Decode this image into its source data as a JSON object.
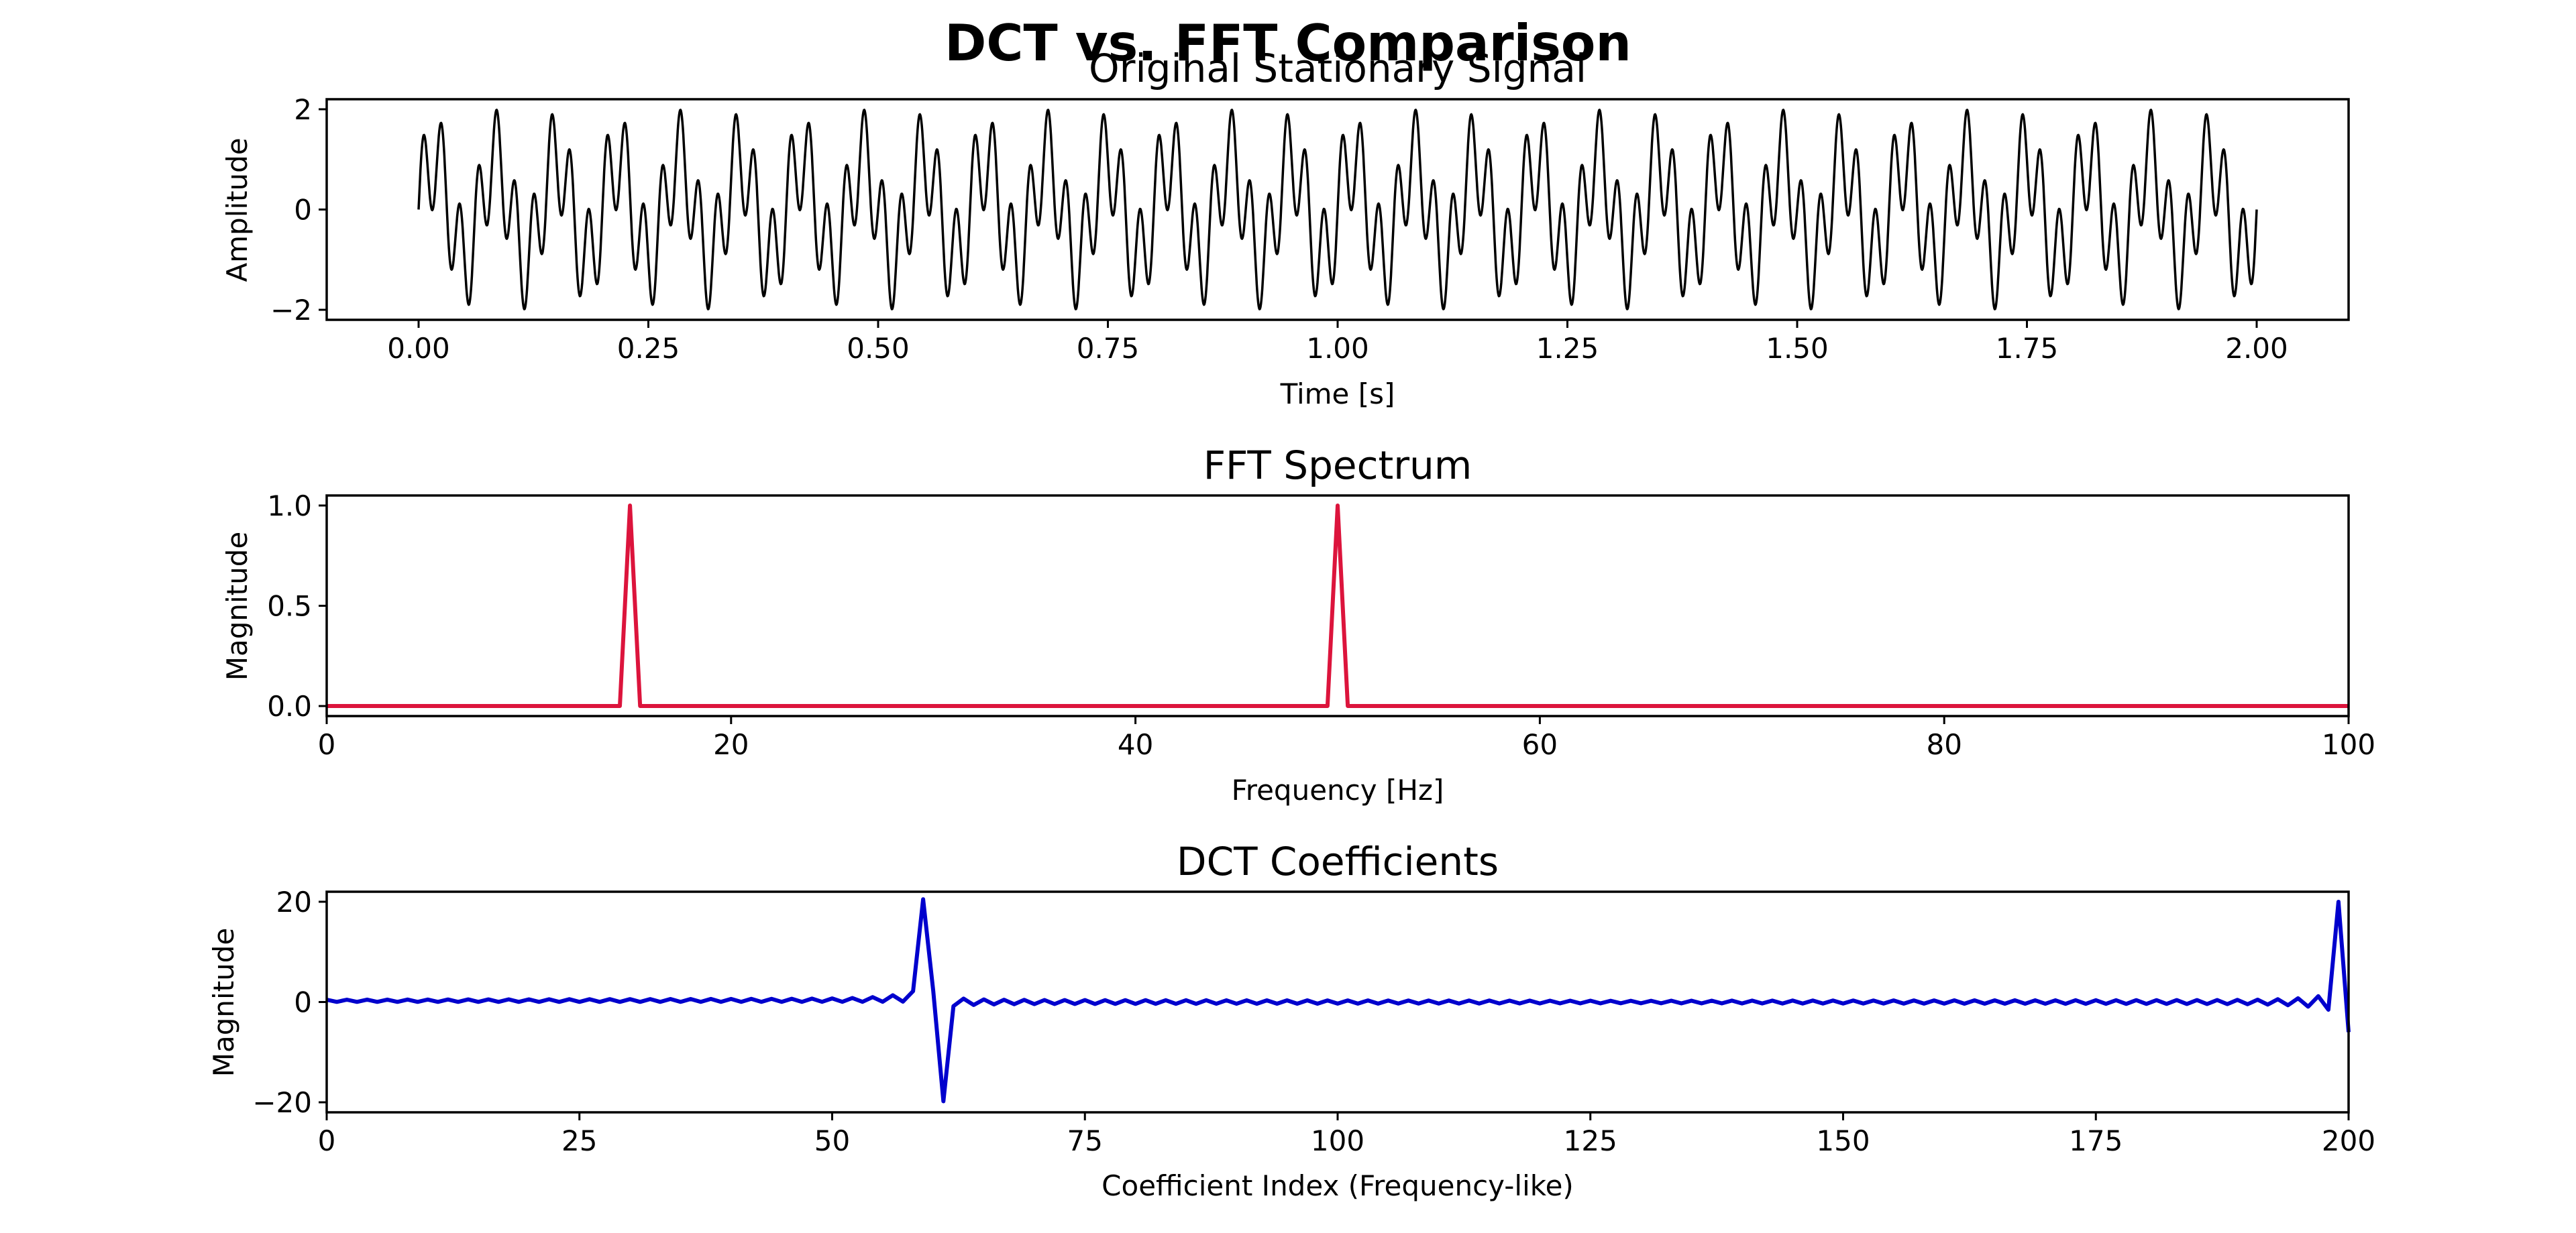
{
  "figure": {
    "suptitle": "DCT vs. FFT Comparison"
  },
  "chart_data": [
    {
      "type": "line",
      "title": "Original Stationary Signal",
      "xlabel": "Time [s]",
      "ylabel": "Amplitude",
      "xlim": [
        -0.1,
        2.1
      ],
      "ylim": [
        -2.2,
        2.2
      ],
      "xticks": [
        "0.00",
        "0.25",
        "0.50",
        "0.75",
        "1.00",
        "1.25",
        "1.50",
        "1.75",
        "2.00"
      ],
      "yticks": [
        "−2",
        "0",
        "2"
      ],
      "line_color": "#000000",
      "series": [
        {
          "signal": "sin(2π·15·t) + sin(2π·50·t)",
          "components": [
            {
              "frequency_hz": 15,
              "amplitude": 1.0
            },
            {
              "frequency_hz": 50,
              "amplitude": 1.0
            }
          ],
          "t_range": [
            0.0,
            2.0
          ]
        }
      ],
      "grid": false
    },
    {
      "type": "line",
      "title": "FFT Spectrum",
      "xlabel": "Frequency [Hz]",
      "ylabel": "Magnitude",
      "xlim": [
        0,
        100
      ],
      "ylim": [
        -0.05,
        1.05
      ],
      "xticks": [
        "0",
        "20",
        "40",
        "60",
        "80",
        "100"
      ],
      "yticks": [
        "0.0",
        "0.5",
        "1.0"
      ],
      "line_color": "#DC143C",
      "series": [
        {
          "x": [
            0,
            14.5,
            15,
            15.5,
            49.5,
            50,
            50.5,
            100
          ],
          "y": [
            0,
            0,
            1.0,
            0,
            0,
            1.0,
            0,
            0
          ]
        }
      ],
      "grid": false
    },
    {
      "type": "line",
      "title": "DCT Coefficients",
      "xlabel": "Coefficient Index (Frequency-like)",
      "ylabel": "Magnitude",
      "xlim": [
        0,
        200
      ],
      "ylim": [
        -22,
        22
      ],
      "xticks": [
        "0",
        "25",
        "50",
        "75",
        "100",
        "125",
        "150",
        "175",
        "200"
      ],
      "yticks": [
        "−20",
        "0",
        "20"
      ],
      "line_color": "#0000CD",
      "series": [
        {
          "peaks": [
            {
              "index": 59,
              "value": 20.5
            },
            {
              "index": 61,
              "value": -19.8
            },
            {
              "index": 199,
              "value": 20.0
            },
            {
              "index": 200,
              "value": -6.0
            }
          ]
        }
      ],
      "grid": false
    }
  ]
}
